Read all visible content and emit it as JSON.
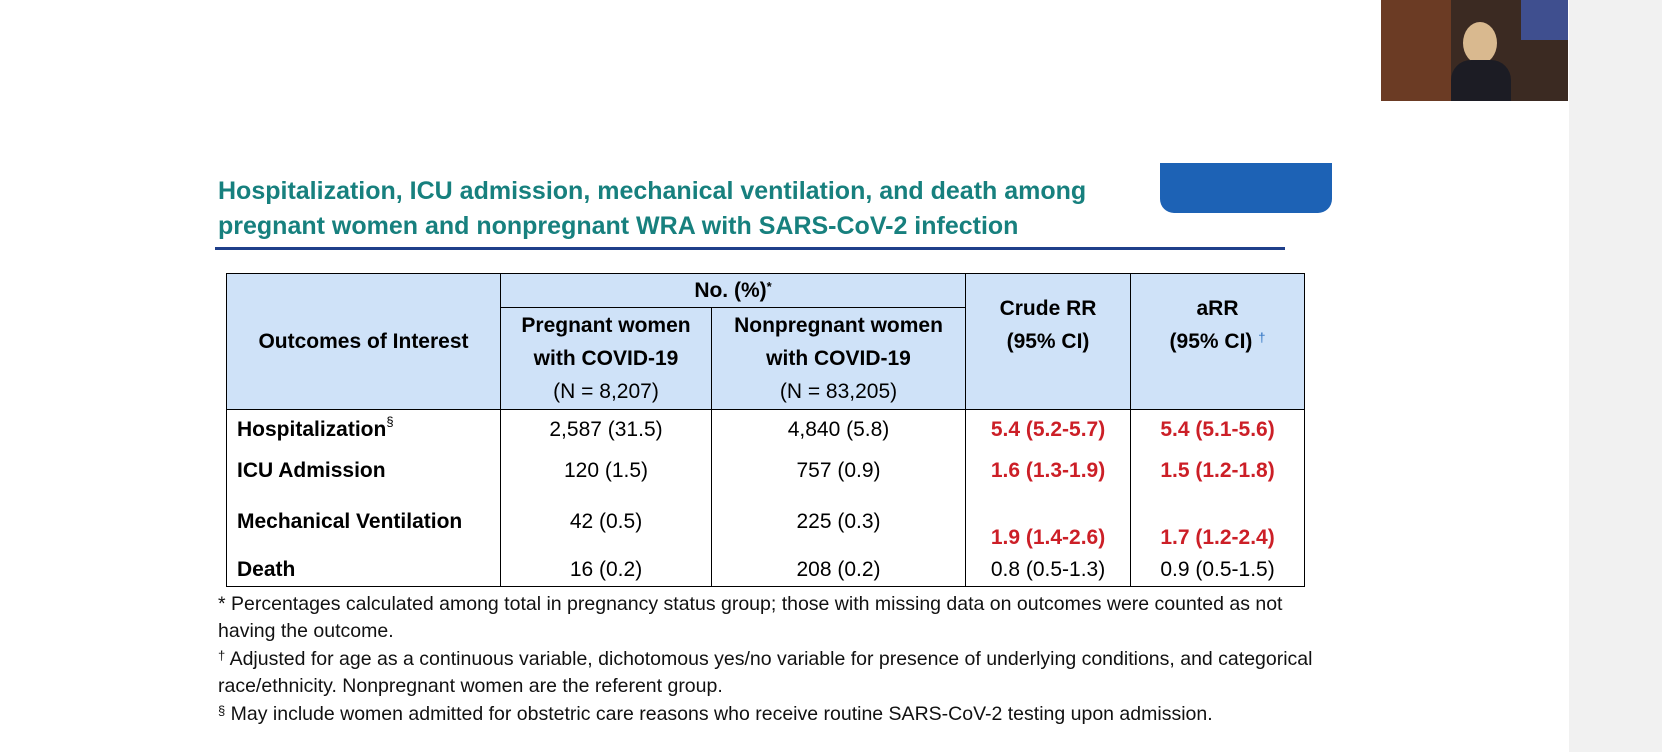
{
  "title": [
    "Hospitalization, ICU admission, mechanical ventilation, and death among",
    "pregnant women and nonpregnant WRA with SARS-CoV-2 infection"
  ],
  "table": {
    "header": {
      "outcome": "Outcomes of Interest",
      "group": "No. (%)",
      "group_mark": "*",
      "pregnant": [
        "Pregnant women",
        "with COVID-19",
        "(N = 8,207)"
      ],
      "nonpregnant": [
        "Nonpregnant women",
        "with COVID-19",
        "(N = 83,205)"
      ],
      "crude": [
        "Crude RR",
        "(95% CI)"
      ],
      "arr": [
        "aRR",
        "(95% CI)"
      ],
      "arr_mark": "†"
    },
    "rows": [
      {
        "label": "Hospitalization",
        "mark": "§",
        "cells": [
          "2,587 (31.5)",
          "4,840 (5.8)",
          "5.4 (5.2-5.7)",
          "5.4 (5.1-5.6)"
        ]
      },
      {
        "label": "ICU Admission",
        "cells": [
          "120 (1.5)",
          "757 (0.9)",
          "1.6 (1.3-1.9)",
          "1.5 (1.2-1.8)"
        ]
      },
      {
        "label": "Mechanical Ventilation",
        "cells": [
          "42 (0.5)",
          "225 (0.3)",
          "1.9 (1.4-2.6)",
          "1.7 (1.2-2.4)"
        ]
      },
      {
        "label": "Death",
        "cells": [
          "16 (0.2)",
          "208 (0.2)",
          "0.8 (0.5-1.3)",
          "0.9 (0.5-1.5)"
        ]
      }
    ]
  },
  "footnotes": [
    {
      "mark": "*",
      "text": "Percentages calculated among total in pregnancy status group; those with missing data on outcomes were counted as not having the outcome."
    },
    {
      "mark": "†",
      "text": "Adjusted for age as a continuous variable, dichotomous yes/no variable for presence of underlying conditions, and categorical race/ethnicity. Nonpregnant women are the referent group."
    },
    {
      "mark": "§",
      "text": "May include women admitted for obstetric care reasons who receive routine SARS-CoV-2 testing upon admission."
    }
  ]
}
